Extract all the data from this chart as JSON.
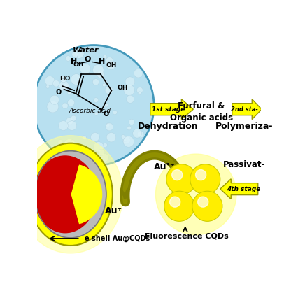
{
  "bg_color": "#ffffff",
  "circle_fill": "#b8e0f0",
  "circle_edge": "#4499bb",
  "bubble_color": "#d8f0f8",
  "mol_ring_color": "#000000",
  "ascorbic_label": "Ascorbic acid",
  "water_label": "Water",
  "dehydration_text": "Dehydration",
  "furfural_text": "Furfural &\nOrganic acids",
  "polymerization_text": "Polymeriza-",
  "stage1_text": "1st stage",
  "stage2_text": "2nd sta-",
  "au3_text": "Au³⁺",
  "au1_text": "Au⁺",
  "passivation_text": "Passivat-",
  "stage4_text": "4th stage",
  "fluorescence_text": "Fluorescence CQDs",
  "shell_text": "e shell Au@CQDs",
  "yellow_arrow": "#ffff00",
  "yellow_arrow_edge": "#999900",
  "yellow_sphere": "#ffee00",
  "yellow_sphere_dark": "#cccc00",
  "yellow_glow": "#ffff88",
  "red_core": "#cc0000",
  "olive_arrow": "#808000",
  "shell_yellow": "#ffff00",
  "shell_gray": "#aaaaaa",
  "shell_outer_glow": "#ffff99"
}
